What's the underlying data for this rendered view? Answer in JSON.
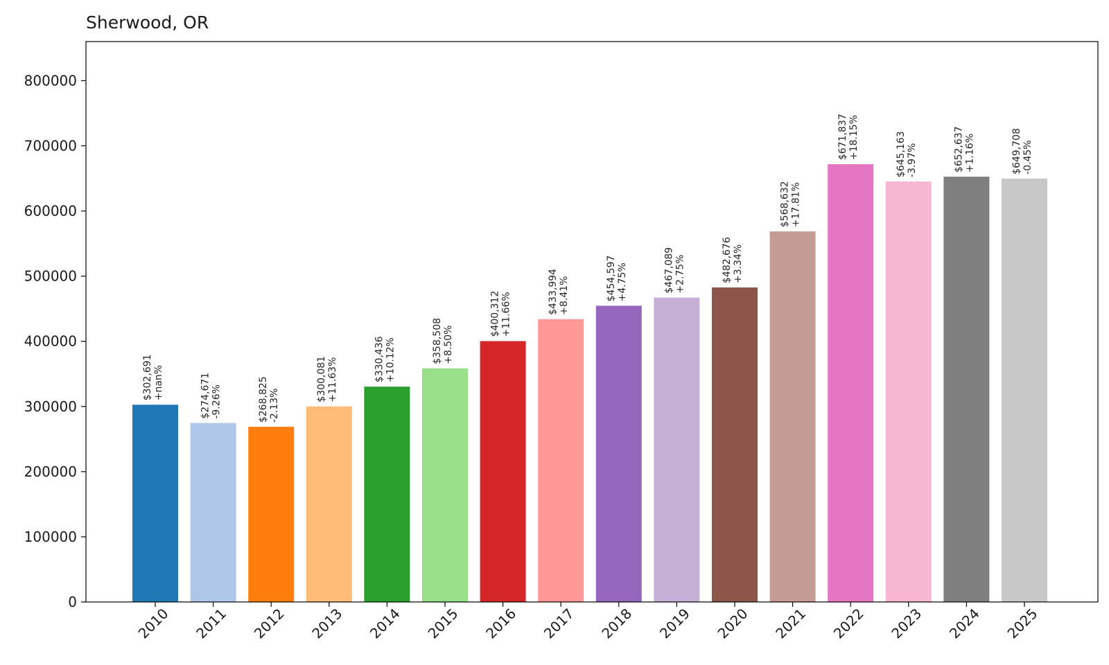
{
  "chart_data": {
    "type": "bar",
    "title": "Sherwood, OR",
    "xlabel": "",
    "ylabel": "",
    "ylim": [
      0,
      860000
    ],
    "yticks": [
      0,
      100000,
      200000,
      300000,
      400000,
      500000,
      600000,
      700000,
      800000
    ],
    "grid": false,
    "categories": [
      "2010",
      "2011",
      "2012",
      "2013",
      "2014",
      "2015",
      "2016",
      "2017",
      "2018",
      "2019",
      "2020",
      "2021",
      "2022",
      "2023",
      "2024",
      "2025"
    ],
    "values": [
      302691,
      274671,
      268825,
      300081,
      330436,
      358508,
      400312,
      433994,
      454597,
      467089,
      482676,
      568632,
      671837,
      645163,
      652637,
      649708
    ],
    "value_labels": [
      "$302,691",
      "$274,671",
      "$268,825",
      "$300,081",
      "$330,436",
      "$358,508",
      "$400,312",
      "$433,994",
      "$454,597",
      "$467,089",
      "$482,676",
      "$568,632",
      "$671,837",
      "$645,163",
      "$652,637",
      "$649,708"
    ],
    "change_labels": [
      "+nan%",
      "-9.26%",
      "-2.13%",
      "+11.63%",
      "+10.12%",
      "+8.50%",
      "+11.66%",
      "+8.41%",
      "+4.75%",
      "+2.75%",
      "+3.34%",
      "+17.81%",
      "+18.15%",
      "-3.97%",
      "+1.16%",
      "-0.45%"
    ],
    "colors": [
      "#1f77b4",
      "#aec7e8",
      "#ff7f0e",
      "#ffbb78",
      "#2ca02c",
      "#98df8a",
      "#d62728",
      "#ff9896",
      "#9467bd",
      "#c5b0d5",
      "#8c564b",
      "#c49c94",
      "#e377c2",
      "#f7b6d2",
      "#7f7f7f",
      "#c7c7c7"
    ]
  }
}
